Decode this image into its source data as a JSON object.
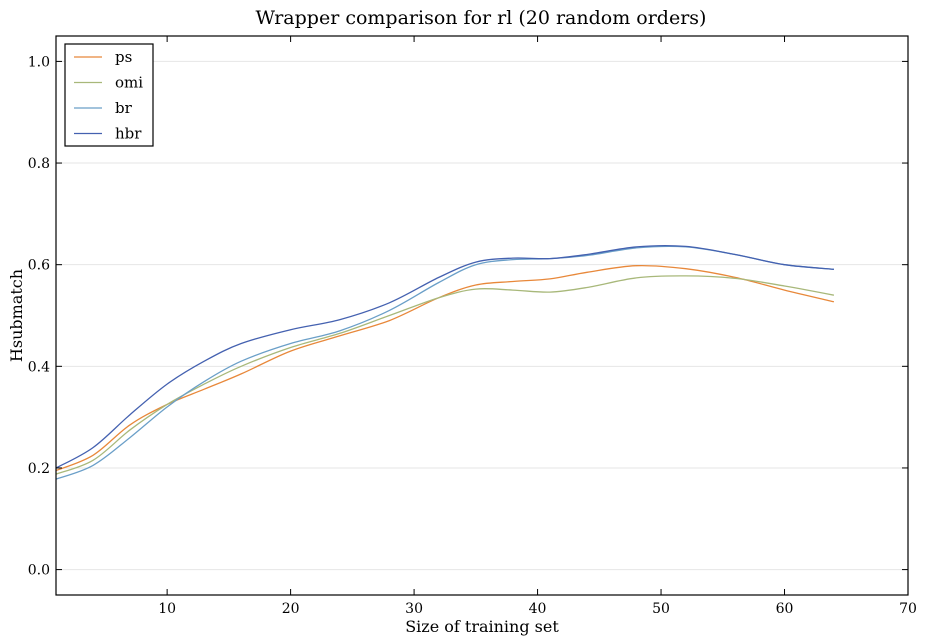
{
  "chart_data": {
    "type": "line",
    "title": "Wrapper comparison for rl (20 random orders)",
    "xlabel": "Size of training set",
    "ylabel": "Hsubmatch",
    "xlim": [
      1,
      70
    ],
    "ylim": [
      -0.05,
      1.05
    ],
    "xticks": [
      10,
      20,
      30,
      40,
      50,
      60,
      70
    ],
    "yticks": [
      0.0,
      0.2,
      0.4,
      0.6,
      0.8,
      1.0
    ],
    "xtick_labels": [
      "10",
      "20",
      "30",
      "40",
      "50",
      "60",
      "70"
    ],
    "ytick_labels": [
      "0.0",
      "0.2",
      "0.4",
      "0.6",
      "0.8",
      "1.0"
    ],
    "grid": "horizontal",
    "legend": "top-left",
    "series": [
      {
        "name": "ps",
        "color": "#e8883a",
        "x": [
          1,
          4,
          7,
          10,
          13,
          16,
          20,
          24,
          28,
          32,
          35,
          38,
          41,
          44,
          48,
          52,
          56,
          60,
          64
        ],
        "y": [
          0.195,
          0.225,
          0.285,
          0.325,
          0.355,
          0.385,
          0.43,
          0.46,
          0.49,
          0.535,
          0.56,
          0.567,
          0.572,
          0.585,
          0.598,
          0.592,
          0.575,
          0.55,
          0.527
        ]
      },
      {
        "name": "omi",
        "color": "#a8b87a",
        "x": [
          1,
          4,
          7,
          10,
          13,
          16,
          20,
          24,
          28,
          32,
          35,
          38,
          41,
          44,
          48,
          52,
          56,
          60,
          64
        ],
        "y": [
          0.188,
          0.215,
          0.275,
          0.325,
          0.365,
          0.4,
          0.437,
          0.465,
          0.5,
          0.535,
          0.552,
          0.55,
          0.546,
          0.555,
          0.574,
          0.578,
          0.573,
          0.558,
          0.54
        ]
      },
      {
        "name": "br",
        "color": "#6a9fc8",
        "x": [
          1,
          4,
          7,
          10,
          13,
          16,
          20,
          24,
          28,
          32,
          35,
          38,
          41,
          44,
          48,
          52,
          56,
          60,
          64
        ],
        "y": [
          0.178,
          0.205,
          0.26,
          0.32,
          0.37,
          0.41,
          0.445,
          0.47,
          0.51,
          0.565,
          0.6,
          0.61,
          0.612,
          0.618,
          0.633,
          0.635,
          0.62,
          0.6,
          0.591
        ]
      },
      {
        "name": "hbr",
        "color": "#4461b0",
        "x": [
          1,
          4,
          7,
          10,
          13,
          16,
          20,
          24,
          28,
          32,
          35,
          38,
          41,
          44,
          48,
          52,
          56,
          60,
          64
        ],
        "y": [
          0.2,
          0.24,
          0.305,
          0.365,
          0.41,
          0.445,
          0.472,
          0.492,
          0.525,
          0.575,
          0.605,
          0.613,
          0.612,
          0.62,
          0.635,
          0.636,
          0.62,
          0.6,
          0.591
        ]
      }
    ]
  }
}
